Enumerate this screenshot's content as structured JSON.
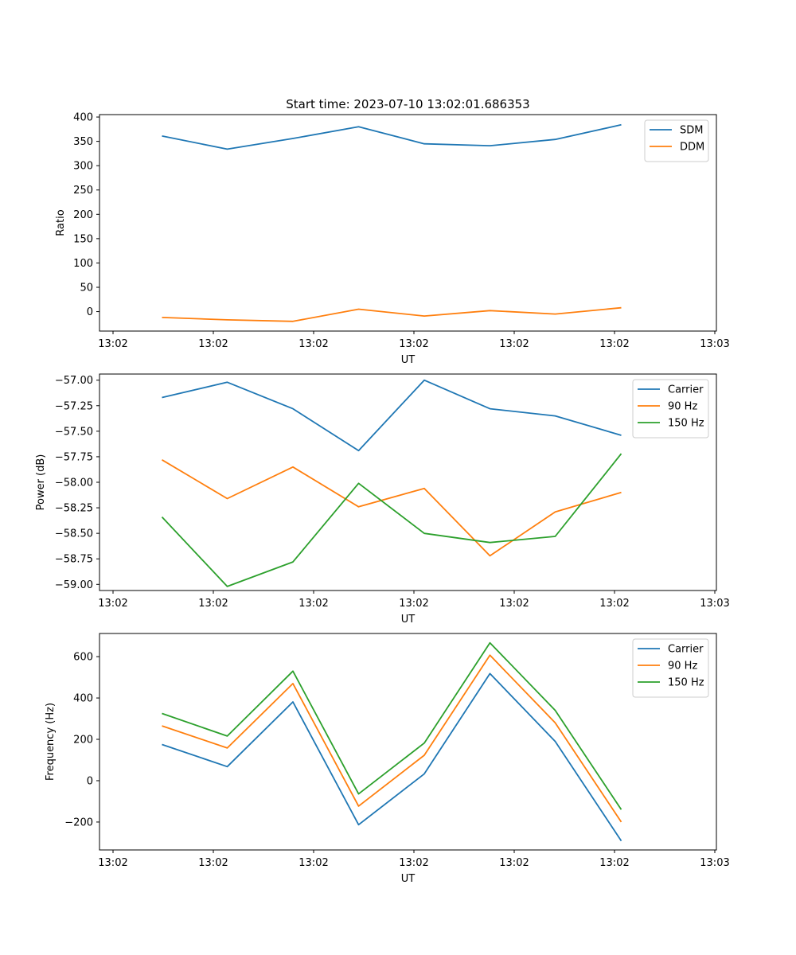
{
  "chart_data": [
    {
      "type": "line",
      "title": "Start time: 2023-07-10 13:02:01.686353",
      "xlabel": "UT",
      "ylabel": "Ratio",
      "xticks": [
        "13:02",
        "13:02",
        "13:02",
        "13:02",
        "13:02",
        "13:02",
        "13:03"
      ],
      "ylim": [
        -40,
        405
      ],
      "yticks": [
        0,
        50,
        100,
        150,
        200,
        250,
        300,
        350,
        400
      ],
      "ytick_labels": [
        "0",
        "50",
        "100",
        "150",
        "200",
        "250",
        "300",
        "350",
        "400"
      ],
      "legend": "top-right",
      "series": [
        {
          "name": "SDM",
          "color": "#1f77b4",
          "values": [
            361,
            334,
            356,
            380,
            345,
            341,
            354,
            384
          ]
        },
        {
          "name": "DDM",
          "color": "#ff7f0e",
          "values": [
            -12,
            -17,
            -20,
            5,
            -9,
            2,
            -5,
            8
          ]
        }
      ]
    },
    {
      "type": "line",
      "title": "",
      "xlabel": "UT",
      "ylabel": "Power (dB)",
      "xticks": [
        "13:02",
        "13:02",
        "13:02",
        "13:02",
        "13:02",
        "13:02",
        "13:03"
      ],
      "ylim": [
        -59.06,
        -56.94
      ],
      "yticks": [
        -59.0,
        -58.75,
        -58.5,
        -58.25,
        -58.0,
        -57.75,
        -57.5,
        -57.25,
        -57.0
      ],
      "ytick_labels": [
        "−59.00",
        "−58.75",
        "−58.50",
        "−58.25",
        "−58.00",
        "−57.75",
        "−57.50",
        "−57.25",
        "−57.00"
      ],
      "legend": "top-right",
      "series": [
        {
          "name": "Carrier",
          "color": "#1f77b4",
          "values": [
            -57.17,
            -57.02,
            -57.28,
            -57.69,
            -57.0,
            -57.28,
            -57.35,
            -57.54
          ]
        },
        {
          "name": "90 Hz",
          "color": "#ff7f0e",
          "values": [
            -57.78,
            -58.16,
            -57.85,
            -58.24,
            -58.06,
            -58.72,
            -58.29,
            -58.1
          ]
        },
        {
          "name": "150 Hz",
          "color": "#2ca02c",
          "values": [
            -58.34,
            -59.02,
            -58.78,
            -58.01,
            -58.5,
            -58.59,
            -58.53,
            -57.72
          ]
        }
      ]
    },
    {
      "type": "line",
      "title": "",
      "xlabel": "UT",
      "ylabel": "Frequency (Hz)",
      "xticks": [
        "13:02",
        "13:02",
        "13:02",
        "13:02",
        "13:02",
        "13:02",
        "13:03"
      ],
      "ylim": [
        -335,
        712
      ],
      "yticks": [
        -200,
        0,
        200,
        400,
        600
      ],
      "ytick_labels": [
        "−200",
        "0",
        "200",
        "400",
        "600"
      ],
      "legend": "top-right",
      "series": [
        {
          "name": "Carrier",
          "color": "#1f77b4",
          "values": [
            175,
            68,
            381,
            -213,
            33,
            518,
            190,
            -291
          ]
        },
        {
          "name": "90 Hz",
          "color": "#ff7f0e",
          "values": [
            265,
            158,
            470,
            -123,
            123,
            607,
            280,
            -200
          ]
        },
        {
          "name": "150 Hz",
          "color": "#2ca02c",
          "values": [
            325,
            216,
            530,
            -64,
            182,
            667,
            340,
            -140
          ]
        }
      ]
    }
  ]
}
